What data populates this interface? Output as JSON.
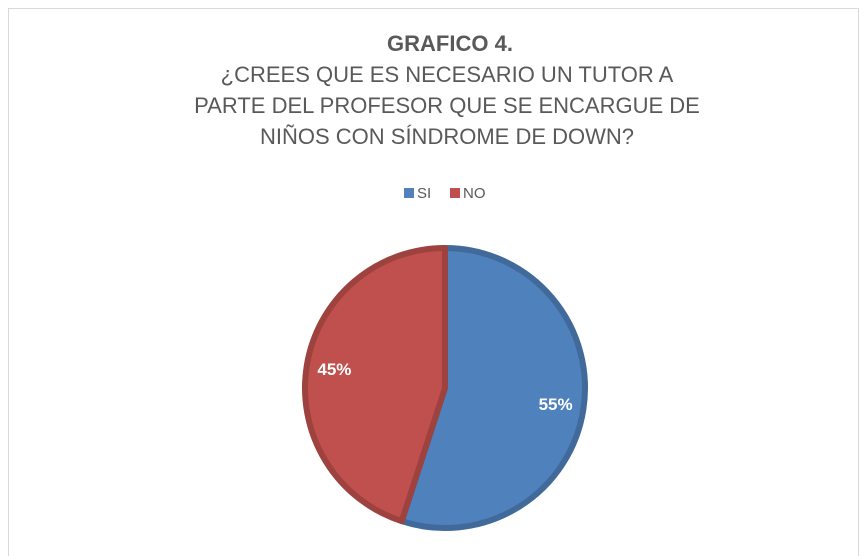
{
  "chart_data": {
    "type": "pie",
    "title": "GRAFICO 4.",
    "subtitle": [
      "¿CREES QUE ES NECESARIO UN TUTOR A",
      "PARTE DEL PROFESOR QUE SE ENCARGUE DE",
      "NIÑOS CON SÍNDROME DE DOWN?"
    ],
    "categories": [
      "SI",
      "NO"
    ],
    "values": [
      55,
      45
    ],
    "value_labels": [
      "55%",
      "45%"
    ],
    "colors": [
      "#4f81bd",
      "#c0504d"
    ],
    "legend": "top"
  }
}
